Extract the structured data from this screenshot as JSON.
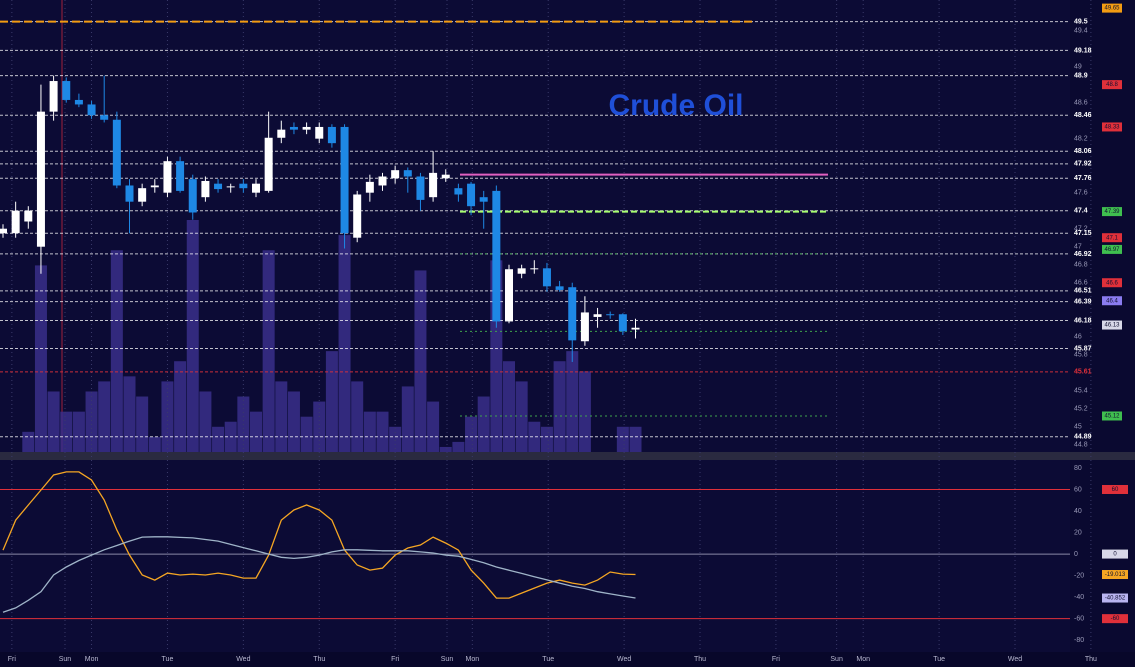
{
  "chart_data": [
    {
      "type": "candlestick",
      "title": "Crude Oil",
      "ylim": [
        44.72,
        49.74
      ],
      "yticks": [
        49.4,
        49,
        48.6,
        48.2,
        47.6,
        47.2,
        47,
        46.8,
        46.6,
        46,
        45.8,
        45.4,
        45.2,
        45,
        44.8
      ],
      "levels": [
        49.5,
        49.18,
        48.9,
        48.46,
        48.06,
        47.92,
        47.76,
        47.4,
        47.15,
        46.92,
        46.51,
        46.39,
        46.18,
        45.87,
        45.61,
        44.89
      ],
      "alert_levels": [
        45.61
      ],
      "partial_levels": [
        {
          "value": 49.5,
          "color": "#f39c12"
        }
      ],
      "zones": [
        {
          "value": 47.8,
          "color": "#e060c0"
        },
        {
          "value": 47.39,
          "color": "#a8ff70"
        },
        {
          "value": 46.92,
          "color": "#3fa34d"
        },
        {
          "value": 46.06,
          "color": "#3fa34d"
        },
        {
          "value": 45.12,
          "color": "#3fa34d"
        }
      ],
      "tags": [
        {
          "value": 49.65,
          "color": "#f39c12"
        },
        {
          "value": 48.8,
          "color": "#e0303a"
        },
        {
          "value": 48.33,
          "color": "#e0303a"
        },
        {
          "value": 47.39,
          "color": "#3fbf4f"
        },
        {
          "value": 47.1,
          "color": "#e0303a"
        },
        {
          "value": 46.97,
          "color": "#3fbf4f"
        },
        {
          "value": 46.6,
          "color": "#e0303a"
        },
        {
          "value": 46.4,
          "color": "#8a7cf0"
        },
        {
          "value": 46.13,
          "color": "#d8d8e8"
        },
        {
          "value": 45.12,
          "color": "#3fbf4f"
        }
      ],
      "xticks": [
        {
          "value": 0.7,
          "label": "Fri"
        },
        {
          "value": 4.9,
          "label": "Sun"
        },
        {
          "value": 7,
          "label": "Mon"
        },
        {
          "value": 13,
          "label": "Tue"
        },
        {
          "value": 19,
          "label": "Wed"
        },
        {
          "value": 25,
          "label": "Thu"
        },
        {
          "value": 31,
          "label": "Fri"
        },
        {
          "value": 35.1,
          "label": "Sun"
        },
        {
          "value": 37.1,
          "label": "Mon"
        },
        {
          "value": 43.1,
          "label": "Tue"
        },
        {
          "value": 49.1,
          "label": "Wed"
        },
        {
          "value": 55.1,
          "label": "Thu"
        },
        {
          "value": 61.1,
          "label": "Fri"
        },
        {
          "value": 65.9,
          "label": "Sun"
        },
        {
          "value": 68,
          "label": "Mon"
        },
        {
          "value": 74,
          "label": "Tue"
        },
        {
          "value": 80,
          "label": "Wed"
        },
        {
          "value": 86,
          "label": "Thu"
        }
      ],
      "up_color": "#ffffff",
      "down_color": "#1e88e5",
      "open": [
        47.15,
        47.15,
        47.28,
        47.0,
        48.5,
        48.84,
        48.63,
        48.58,
        48.46,
        48.41,
        47.68,
        47.5,
        47.66,
        47.6,
        47.95,
        47.75,
        47.55,
        47.7,
        47.66,
        47.7,
        47.6,
        47.62,
        48.21,
        48.33,
        48.3,
        48.2,
        48.33,
        48.33,
        47.1,
        47.6,
        47.68,
        47.76,
        47.85,
        47.78,
        47.55,
        47.76,
        47.65,
        47.7,
        47.55,
        47.62,
        46.17,
        46.7,
        46.76,
        46.76,
        46.56,
        46.55,
        45.95,
        46.22,
        46.25,
        46.25,
        46.08
      ],
      "high": [
        47.25,
        47.5,
        47.45,
        48.8,
        48.9,
        48.88,
        48.7,
        48.62,
        48.9,
        48.5,
        47.75,
        47.7,
        47.75,
        48.0,
        48.0,
        47.8,
        47.78,
        47.75,
        47.7,
        47.75,
        47.75,
        48.5,
        48.4,
        48.38,
        48.38,
        48.38,
        48.36,
        48.36,
        47.62,
        47.8,
        47.82,
        47.9,
        47.88,
        47.82,
        48.06,
        47.86,
        47.7,
        47.72,
        47.62,
        47.68,
        46.8,
        46.8,
        46.85,
        46.82,
        46.62,
        46.6,
        46.45,
        46.32,
        46.28,
        46.26,
        46.2
      ],
      "low": [
        47.1,
        47.1,
        47.2,
        46.7,
        48.4,
        48.6,
        48.55,
        48.42,
        48.38,
        47.65,
        47.15,
        47.45,
        47.6,
        47.55,
        47.6,
        47.3,
        47.5,
        47.6,
        47.6,
        47.6,
        47.55,
        47.6,
        48.15,
        48.25,
        48.25,
        48.15,
        48.1,
        46.98,
        47.05,
        47.5,
        47.62,
        47.7,
        47.6,
        47.4,
        47.5,
        47.72,
        47.5,
        47.35,
        47.2,
        46.1,
        46.15,
        46.65,
        46.7,
        46.5,
        46.5,
        45.72,
        45.9,
        46.1,
        46.2,
        46.02,
        45.98
      ],
      "close": [
        47.2,
        47.4,
        47.4,
        48.5,
        48.84,
        48.63,
        48.58,
        48.46,
        48.41,
        47.68,
        47.5,
        47.65,
        47.68,
        47.95,
        47.62,
        47.38,
        47.73,
        47.64,
        47.67,
        47.65,
        47.7,
        48.21,
        48.3,
        48.3,
        48.33,
        48.33,
        48.15,
        47.15,
        47.58,
        47.72,
        47.78,
        47.85,
        47.78,
        47.52,
        47.82,
        47.8,
        47.58,
        47.45,
        47.5,
        46.17,
        46.75,
        46.76,
        46.76,
        46.56,
        46.52,
        45.96,
        46.27,
        46.25,
        46.24,
        46.06,
        46.1
      ]
    },
    {
      "type": "volume",
      "color": "#3a2f8a",
      "values": [
        0,
        0,
        20,
        185,
        60,
        40,
        40,
        60,
        70,
        200,
        75,
        55,
        15,
        70,
        90,
        230,
        60,
        25,
        30,
        55,
        40,
        200,
        70,
        60,
        35,
        50,
        100,
        215,
        70,
        40,
        40,
        25,
        65,
        180,
        50,
        5,
        10,
        35,
        55,
        190,
        90,
        70,
        30,
        25,
        90,
        100,
        80,
        0,
        0,
        25,
        25
      ]
    },
    {
      "type": "line",
      "ylim": [
        -91,
        87.4
      ],
      "yticks": [
        80,
        60,
        40,
        20,
        0,
        -20,
        -40,
        -60,
        -80
      ],
      "hlines": [
        {
          "value": 60,
          "color": "#e0303a"
        },
        {
          "value": 0,
          "color": "#8a8aa8"
        },
        {
          "value": -60,
          "color": "#e0303a"
        }
      ],
      "tags": [
        {
          "value": 60,
          "color": "#e0303a"
        },
        {
          "value": 0,
          "color": "#d8d8e8"
        },
        {
          "value": -19.013,
          "color": "#f5a623"
        },
        {
          "value": -40.852,
          "color": "#b9b4f0"
        },
        {
          "value": -60,
          "color": "#e0303a"
        }
      ],
      "series": [
        {
          "color": "#f5a623",
          "values": [
            3.7,
            31.6,
            45.6,
            59.5,
            73.5,
            76.3,
            76.3,
            68.8,
            50.2,
            22.3,
            -0.9,
            -19.5,
            -24.2,
            -17.7,
            -19.5,
            -18.6,
            -19.5,
            -17.7,
            -19.5,
            -22.3,
            -22.3,
            -0.9,
            31.6,
            40.9,
            45.6,
            40.9,
            31.6,
            3.7,
            -10.2,
            -14.9,
            -13,
            -0.9,
            5.6,
            8.4,
            15.8,
            10.2,
            3.7,
            -14.9,
            -27,
            -40.9,
            -40.9,
            -36.3,
            -31.6,
            -27,
            -24.2,
            -27,
            -28.8,
            -24.2,
            -16.7,
            -18.6,
            -19.013
          ]
        },
        {
          "color": "#9fb4c8",
          "values": [
            -54,
            -50,
            -43,
            -35,
            -19.5,
            -12,
            -6,
            -1,
            4,
            8,
            12,
            15.8,
            16,
            16,
            15.5,
            15,
            13.5,
            12,
            9,
            6,
            3,
            0,
            -3,
            -4,
            -3,
            -1,
            2,
            4,
            4,
            3.5,
            3,
            3,
            3,
            2,
            1,
            -1,
            -2,
            -5,
            -8,
            -12,
            -15,
            -18,
            -21,
            -24,
            -27,
            -30,
            -32,
            -35,
            -37,
            -39,
            -40.852
          ]
        }
      ]
    }
  ]
}
